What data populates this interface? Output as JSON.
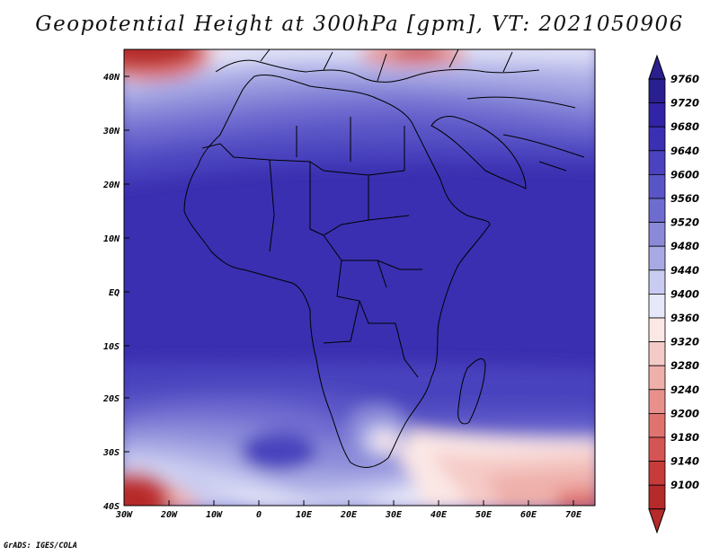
{
  "title": "Geopotential Height at 300hPa [gpm], VT: 2021050906",
  "footer": "GrADS: IGES/COLA",
  "map": {
    "lon_ticks": [
      "30W",
      "20W",
      "10W",
      "0",
      "10E",
      "20E",
      "30E",
      "40E",
      "50E",
      "60E",
      "70E"
    ],
    "lat_ticks": [
      "40N",
      "30N",
      "20N",
      "10N",
      "EQ",
      "10S",
      "20S",
      "30S",
      "40S"
    ]
  },
  "colorbar": {
    "labels": [
      "9760",
      "9720",
      "9680",
      "9640",
      "9600",
      "9560",
      "9520",
      "9480",
      "9440",
      "9400",
      "9360",
      "9320",
      "9280",
      "9240",
      "9200",
      "9180",
      "9140",
      "9100"
    ],
    "colors": [
      "#2a1f8f",
      "#3224a6",
      "#3b30b3",
      "#4a42be",
      "#5a55c6",
      "#6f6cd0",
      "#8a8ad9",
      "#a8a9e4",
      "#c9cbf0",
      "#e6e7f8",
      "#fbe7e5",
      "#f5cbc7",
      "#efb0aa",
      "#e8918c",
      "#df736f",
      "#d45553",
      "#c73b3b",
      "#b52a2a"
    ]
  },
  "chart_data": {
    "type": "heatmap",
    "title": "Geopotential Height at 300hPa [gpm], VT: 2021050906",
    "x_range": [
      "30W",
      "75E"
    ],
    "y_range": [
      "40S",
      "45N"
    ],
    "color_levels": [
      9100,
      9140,
      9180,
      9200,
      9240,
      9280,
      9320,
      9360,
      9400,
      9440,
      9480,
      9520,
      9560,
      9600,
      9640,
      9680,
      9720,
      9760
    ]
  }
}
